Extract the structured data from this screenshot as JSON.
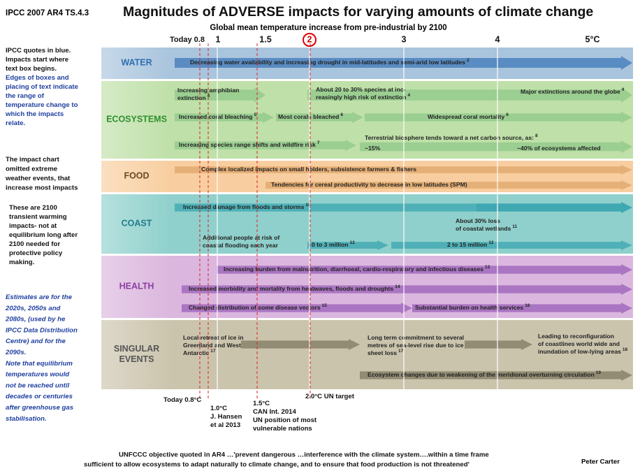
{
  "header": {
    "source": "IPCC 2007 AR4 TS.4.3",
    "title": "Magnitudes of ADVERSE impacts  for varying amounts of climate change",
    "subtitle": "Global mean temperature increase from pre-industrial by 2100"
  },
  "axis_labels": [
    "Today 0.8",
    "1",
    "1.5",
    "2",
    "3",
    "4",
    "5°C"
  ],
  "notes": [
    {
      "lines": [
        "IPCC quotes in blue.",
        "Impacts start where",
        "text box begins."
      ]
    },
    {
      "lines": [
        "Edges of boxes and",
        "placing of text indicate",
        "the range of",
        "temperature change to",
        "which the impacts",
        "relate."
      ]
    },
    {
      "lines": [
        "The impact chart",
        "omitted extreme",
        "weather events, that",
        "increase most impacts"
      ]
    },
    {
      "lines": [
        "These are 2100",
        "transient  warming",
        "impacts- not at",
        "equilibrium long after",
        "2100 needed for",
        "protective policy",
        "making."
      ]
    },
    {
      "lines": [
        "Estimates  are for the",
        "2020s, 2050s and",
        "2080s, (used by he",
        "IPCC Data Distribution",
        "Centre) and for the",
        "2090s.",
        "Note that equilibrium",
        "temperatures would",
        "not be reached until",
        "decades  or centuries",
        "after greenhouse gas",
        "stabilisation."
      ]
    }
  ],
  "sectors": [
    {
      "name": [
        "WATER"
      ],
      "impacts": [
        {
          "lines": [
            "Decreasing water availability and increasing drought in mid-latitudes and semi-arid low latitudes"
          ],
          "ref": "2"
        }
      ]
    },
    {
      "name": [
        "ECOSYSTEMS"
      ],
      "impacts": [
        {
          "lines": [
            "Increasing amphibian",
            "extinction"
          ],
          "ref": "4"
        },
        {
          "lines": [
            "About 20 to 30% species at inc-",
            "reasingly high risk of extinction"
          ],
          "ref": "4"
        },
        {
          "lines": [
            "Major extinctions around the globe"
          ],
          "ref": "4"
        },
        {
          "lines": [
            "Increased coral bleaching"
          ],
          "ref": "5"
        },
        {
          "lines": [
            "Most corals bleached"
          ],
          "ref": "6"
        },
        {
          "lines": [
            "Widespread coral mortality"
          ],
          "ref": "6"
        },
        {
          "lines": [
            "Increasing species range shifts and wildfire risk"
          ],
          "ref": "7"
        },
        {
          "lines": [
            "Terrestrial biosphere tends toward a net carbon source, as:"
          ],
          "ref": "8"
        },
        {
          "lines": [
            "~15%"
          ]
        },
        {
          "lines": [
            "~40% of ecosystems affected"
          ]
        }
      ]
    },
    {
      "name": [
        "FOOD"
      ],
      "impacts": [
        {
          "lines": [
            "Complex localized impacts on small holders, subsistence  farmers & fishers"
          ]
        },
        {
          "lines": [
            "Tendencies for cereal productivity to decrease in low latitudes (SPM)"
          ]
        }
      ]
    },
    {
      "name": [
        "COAST"
      ],
      "impacts": [
        {
          "lines": [
            "Increased damage from floods and storms"
          ],
          "ref": "10"
        },
        {
          "lines": [
            "About 30% loss",
            "of coastal wetlands"
          ],
          "ref": "11"
        },
        {
          "lines": [
            "Additional people at risk of",
            "coastal flooding each year"
          ]
        },
        {
          "lines": [
            "0 to 3 million"
          ],
          "ref": "12"
        },
        {
          "lines": [
            "2 to 15 million"
          ],
          "ref": "12"
        }
      ]
    },
    {
      "name": [
        "HEALTH"
      ],
      "impacts": [
        {
          "lines": [
            "Increasing burden from malnutrition, diarrhoeal, cardio-respiratory and infectious diseases"
          ],
          "ref": "13"
        },
        {
          "lines": [
            "Increased morbidity and mortality from heatwaves, floods and droughts"
          ],
          "ref": "14"
        },
        {
          "lines": [
            "Changed distribution of some disease vectors"
          ],
          "ref": "15"
        },
        {
          "lines": [
            "Substantial burden on health services"
          ],
          "ref": "16"
        }
      ]
    },
    {
      "name": [
        "SINGULAR",
        "EVENTS"
      ],
      "impacts": [
        {
          "lines": [
            "Local retreat of ice in",
            "Greenland and West",
            "Antarctic"
          ],
          "ref": "17"
        },
        {
          "lines": [
            "Long term commitment to several",
            "metres of sea-level rise due to ice",
            "sheet loss"
          ],
          "ref": "17"
        },
        {
          "lines": [
            "Leading to reconfiguration",
            "of coastlines world wide and",
            "inundation of low-lying areas"
          ],
          "ref": "18"
        },
        {
          "lines": [
            "Ecosystem changes due to weakening of the meridional overturning circulation"
          ],
          "ref": "19"
        }
      ]
    }
  ],
  "annotations": [
    {
      "lines": [
        "Today 0.8°C"
      ]
    },
    {
      "lines": [
        "1.0°C",
        "J. Hansen",
        "et al 2013"
      ]
    },
    {
      "lines": [
        "1.5°C",
        "CAN Int. 2014",
        "UN position of most",
        "vulnerable nations"
      ]
    },
    {
      "lines": [
        "2.0°C UN target"
      ]
    }
  ],
  "footer": {
    "quote_lines": [
      "UNFCCC objective quoted in AR4 …'prevent dangerous …interference with the climate system….within a time frame",
      "sufficient to allow  ecosystems to adapt naturally  to climate change, and to ensure that food production is not threatened'"
    ],
    "author": "Peter Carter"
  }
}
